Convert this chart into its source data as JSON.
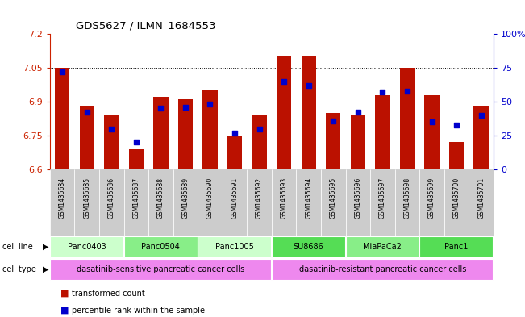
{
  "title": "GDS5627 / ILMN_1684553",
  "samples": [
    "GSM1435684",
    "GSM1435685",
    "GSM1435686",
    "GSM1435687",
    "GSM1435688",
    "GSM1435689",
    "GSM1435690",
    "GSM1435691",
    "GSM1435692",
    "GSM1435693",
    "GSM1435694",
    "GSM1435695",
    "GSM1435696",
    "GSM1435697",
    "GSM1435698",
    "GSM1435699",
    "GSM1435700",
    "GSM1435701"
  ],
  "bar_values": [
    7.05,
    6.88,
    6.84,
    6.69,
    6.92,
    6.91,
    6.95,
    6.75,
    6.84,
    7.1,
    7.1,
    6.85,
    6.84,
    6.93,
    7.05,
    6.93,
    6.72,
    6.88
  ],
  "percentile_values": [
    72,
    42,
    30,
    20,
    45,
    46,
    48,
    27,
    30,
    65,
    62,
    36,
    42,
    57,
    58,
    35,
    33,
    40
  ],
  "ylim_left": [
    6.6,
    7.2
  ],
  "ylim_right": [
    0,
    100
  ],
  "yticks_left": [
    6.6,
    6.75,
    6.9,
    7.05,
    7.2
  ],
  "yticks_right": [
    0,
    25,
    50,
    75,
    100
  ],
  "ytick_labels_left": [
    "6.6",
    "6.75",
    "6.9",
    "7.05",
    "7.2"
  ],
  "ytick_labels_right": [
    "0",
    "25",
    "50",
    "75",
    "100%"
  ],
  "bar_color": "#bb1100",
  "dot_color": "#0000cc",
  "cell_lines": [
    {
      "name": "Panc0403",
      "start": 0,
      "end": 2,
      "color": "#ccffcc"
    },
    {
      "name": "Panc0504",
      "start": 3,
      "end": 5,
      "color": "#88ee88"
    },
    {
      "name": "Panc1005",
      "start": 6,
      "end": 8,
      "color": "#ccffcc"
    },
    {
      "name": "SU8686",
      "start": 9,
      "end": 11,
      "color": "#55dd55"
    },
    {
      "name": "MiaPaCa2",
      "start": 12,
      "end": 14,
      "color": "#88ee88"
    },
    {
      "name": "Panc1",
      "start": 15,
      "end": 17,
      "color": "#55dd55"
    }
  ],
  "cell_types": [
    {
      "name": "dasatinib-sensitive pancreatic cancer cells",
      "start": 0,
      "end": 8,
      "color": "#ee88ee"
    },
    {
      "name": "dasatinib-resistant pancreatic cancer cells",
      "start": 9,
      "end": 17,
      "color": "#ee88ee"
    }
  ],
  "legend_items": [
    {
      "label": "transformed count",
      "color": "#bb1100"
    },
    {
      "label": "percentile rank within the sample",
      "color": "#0000cc"
    }
  ],
  "grid_linestyle": "dotted",
  "bg_color": "#ffffff",
  "ticklabel_bg": "#cccccc",
  "n_samples": 18
}
